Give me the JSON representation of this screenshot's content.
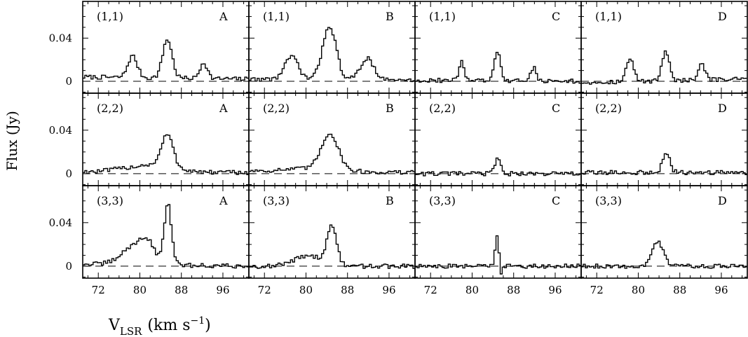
{
  "chart_data": {
    "type": "line",
    "layout": "3x4 grid of stepped spectra",
    "ylabel": "Flux (Jy)",
    "xlabel": {
      "main": "V",
      "sub": "LSR",
      "units": "(km s",
      "exp": "−1",
      "close": ")"
    },
    "xlim": [
      69,
      101
    ],
    "ylim": [
      -0.011,
      0.074
    ],
    "xticks": [
      72,
      80,
      88,
      96
    ],
    "yticks": [
      {
        "value": 0,
        "label": "0"
      },
      {
        "value": 0.04,
        "label": "0.04"
      }
    ],
    "baseline": "dashed at 0",
    "transitions": [
      "(1,1)",
      "(2,2)",
      "(3,3)"
    ],
    "positions": [
      "A",
      "B",
      "C",
      "D"
    ],
    "spectra": [
      [
        {
          "transition": "(1,1)",
          "position": "A",
          "baseline_start": 0.004,
          "baseline_end": 0.002,
          "slope": 0.0,
          "lines": [
            [
              78.6,
              0.02,
              0.9
            ],
            [
              85.3,
              0.036,
              0.9
            ],
            [
              92.3,
              0.015,
              0.7
            ]
          ],
          "wings": []
        },
        {
          "transition": "(1,1)",
          "position": "B",
          "baseline_start": 0.002,
          "baseline_end": 0.001,
          "slope": 0.0,
          "lines": [
            [
              77.2,
              0.021,
              1.3
            ],
            [
              84.5,
              0.05,
              1.3
            ],
            [
              91.8,
              0.02,
              1.3
            ]
          ],
          "wings": []
        },
        {
          "transition": "(1,1)",
          "position": "C",
          "baseline_start": 0.001,
          "baseline_end": 0.0,
          "slope": 0.0,
          "lines": [
            [
              78.0,
              0.018,
              0.5
            ],
            [
              84.9,
              0.026,
              0.6
            ],
            [
              91.9,
              0.014,
              0.5
            ]
          ],
          "wings": []
        },
        {
          "transition": "(1,1)",
          "position": "D",
          "baseline_start": -0.001,
          "baseline_end": 0.002,
          "slope": 0.0,
          "lines": [
            [
              78.4,
              0.021,
              0.7
            ],
            [
              85.3,
              0.028,
              0.7
            ],
            [
              92.3,
              0.015,
              0.6
            ]
          ],
          "wings": []
        }
      ],
      [
        {
          "transition": "(2,2)",
          "position": "A",
          "baseline_start": 0.002,
          "baseline_end": 0.001,
          "slope": 0.007,
          "lines": [
            [
              85.3,
              0.03,
              1.1
            ]
          ],
          "wings": []
        },
        {
          "transition": "(2,2)",
          "position": "B",
          "baseline_start": 0.003,
          "baseline_end": 0.001,
          "slope": 0.003,
          "lines": [
            [
              84.6,
              0.033,
              1.6
            ]
          ],
          "wings": []
        },
        {
          "transition": "(2,2)",
          "position": "C",
          "baseline_start": 0.0,
          "baseline_end": 0.0,
          "slope": 0.0,
          "lines": [
            [
              84.9,
              0.013,
              0.6
            ]
          ],
          "wings": []
        },
        {
          "transition": "(2,2)",
          "position": "D",
          "baseline_start": 0.001,
          "baseline_end": 0.001,
          "slope": 0.0,
          "lines": [
            [
              85.4,
              0.018,
              0.7
            ]
          ],
          "wings": []
        }
      ],
      [
        {
          "transition": "(3,3)",
          "position": "A",
          "baseline_start": 0.002,
          "baseline_end": 0.0,
          "slope": 0.0,
          "lines": [
            [
              85.4,
              0.055,
              0.7
            ],
            [
              79.5,
              0.019,
              2.6
            ]
          ],
          "wings": [
            [
              81.5,
              0.01,
              1.2
            ]
          ]
        },
        {
          "transition": "(3,3)",
          "position": "B",
          "baseline_start": 0.0,
          "baseline_end": 0.0,
          "slope": 0.0,
          "lines": [
            [
              85.0,
              0.036,
              0.9
            ],
            [
              80.5,
              0.01,
              2.6
            ]
          ],
          "wings": []
        },
        {
          "transition": "(3,3)",
          "position": "C",
          "baseline_start": 0.0,
          "baseline_end": 0.0,
          "slope": 0.0,
          "lines": [
            [
              84.8,
              0.03,
              0.35
            ]
          ],
          "wings": [
            [
              85.5,
              -0.008,
              0.3
            ]
          ]
        },
        {
          "transition": "(3,3)",
          "position": "D",
          "baseline_start": 0.0,
          "baseline_end": 0.0,
          "slope": 0.0,
          "lines": [
            [
              83.8,
              0.022,
              1.1
            ]
          ],
          "wings": []
        }
      ]
    ]
  }
}
